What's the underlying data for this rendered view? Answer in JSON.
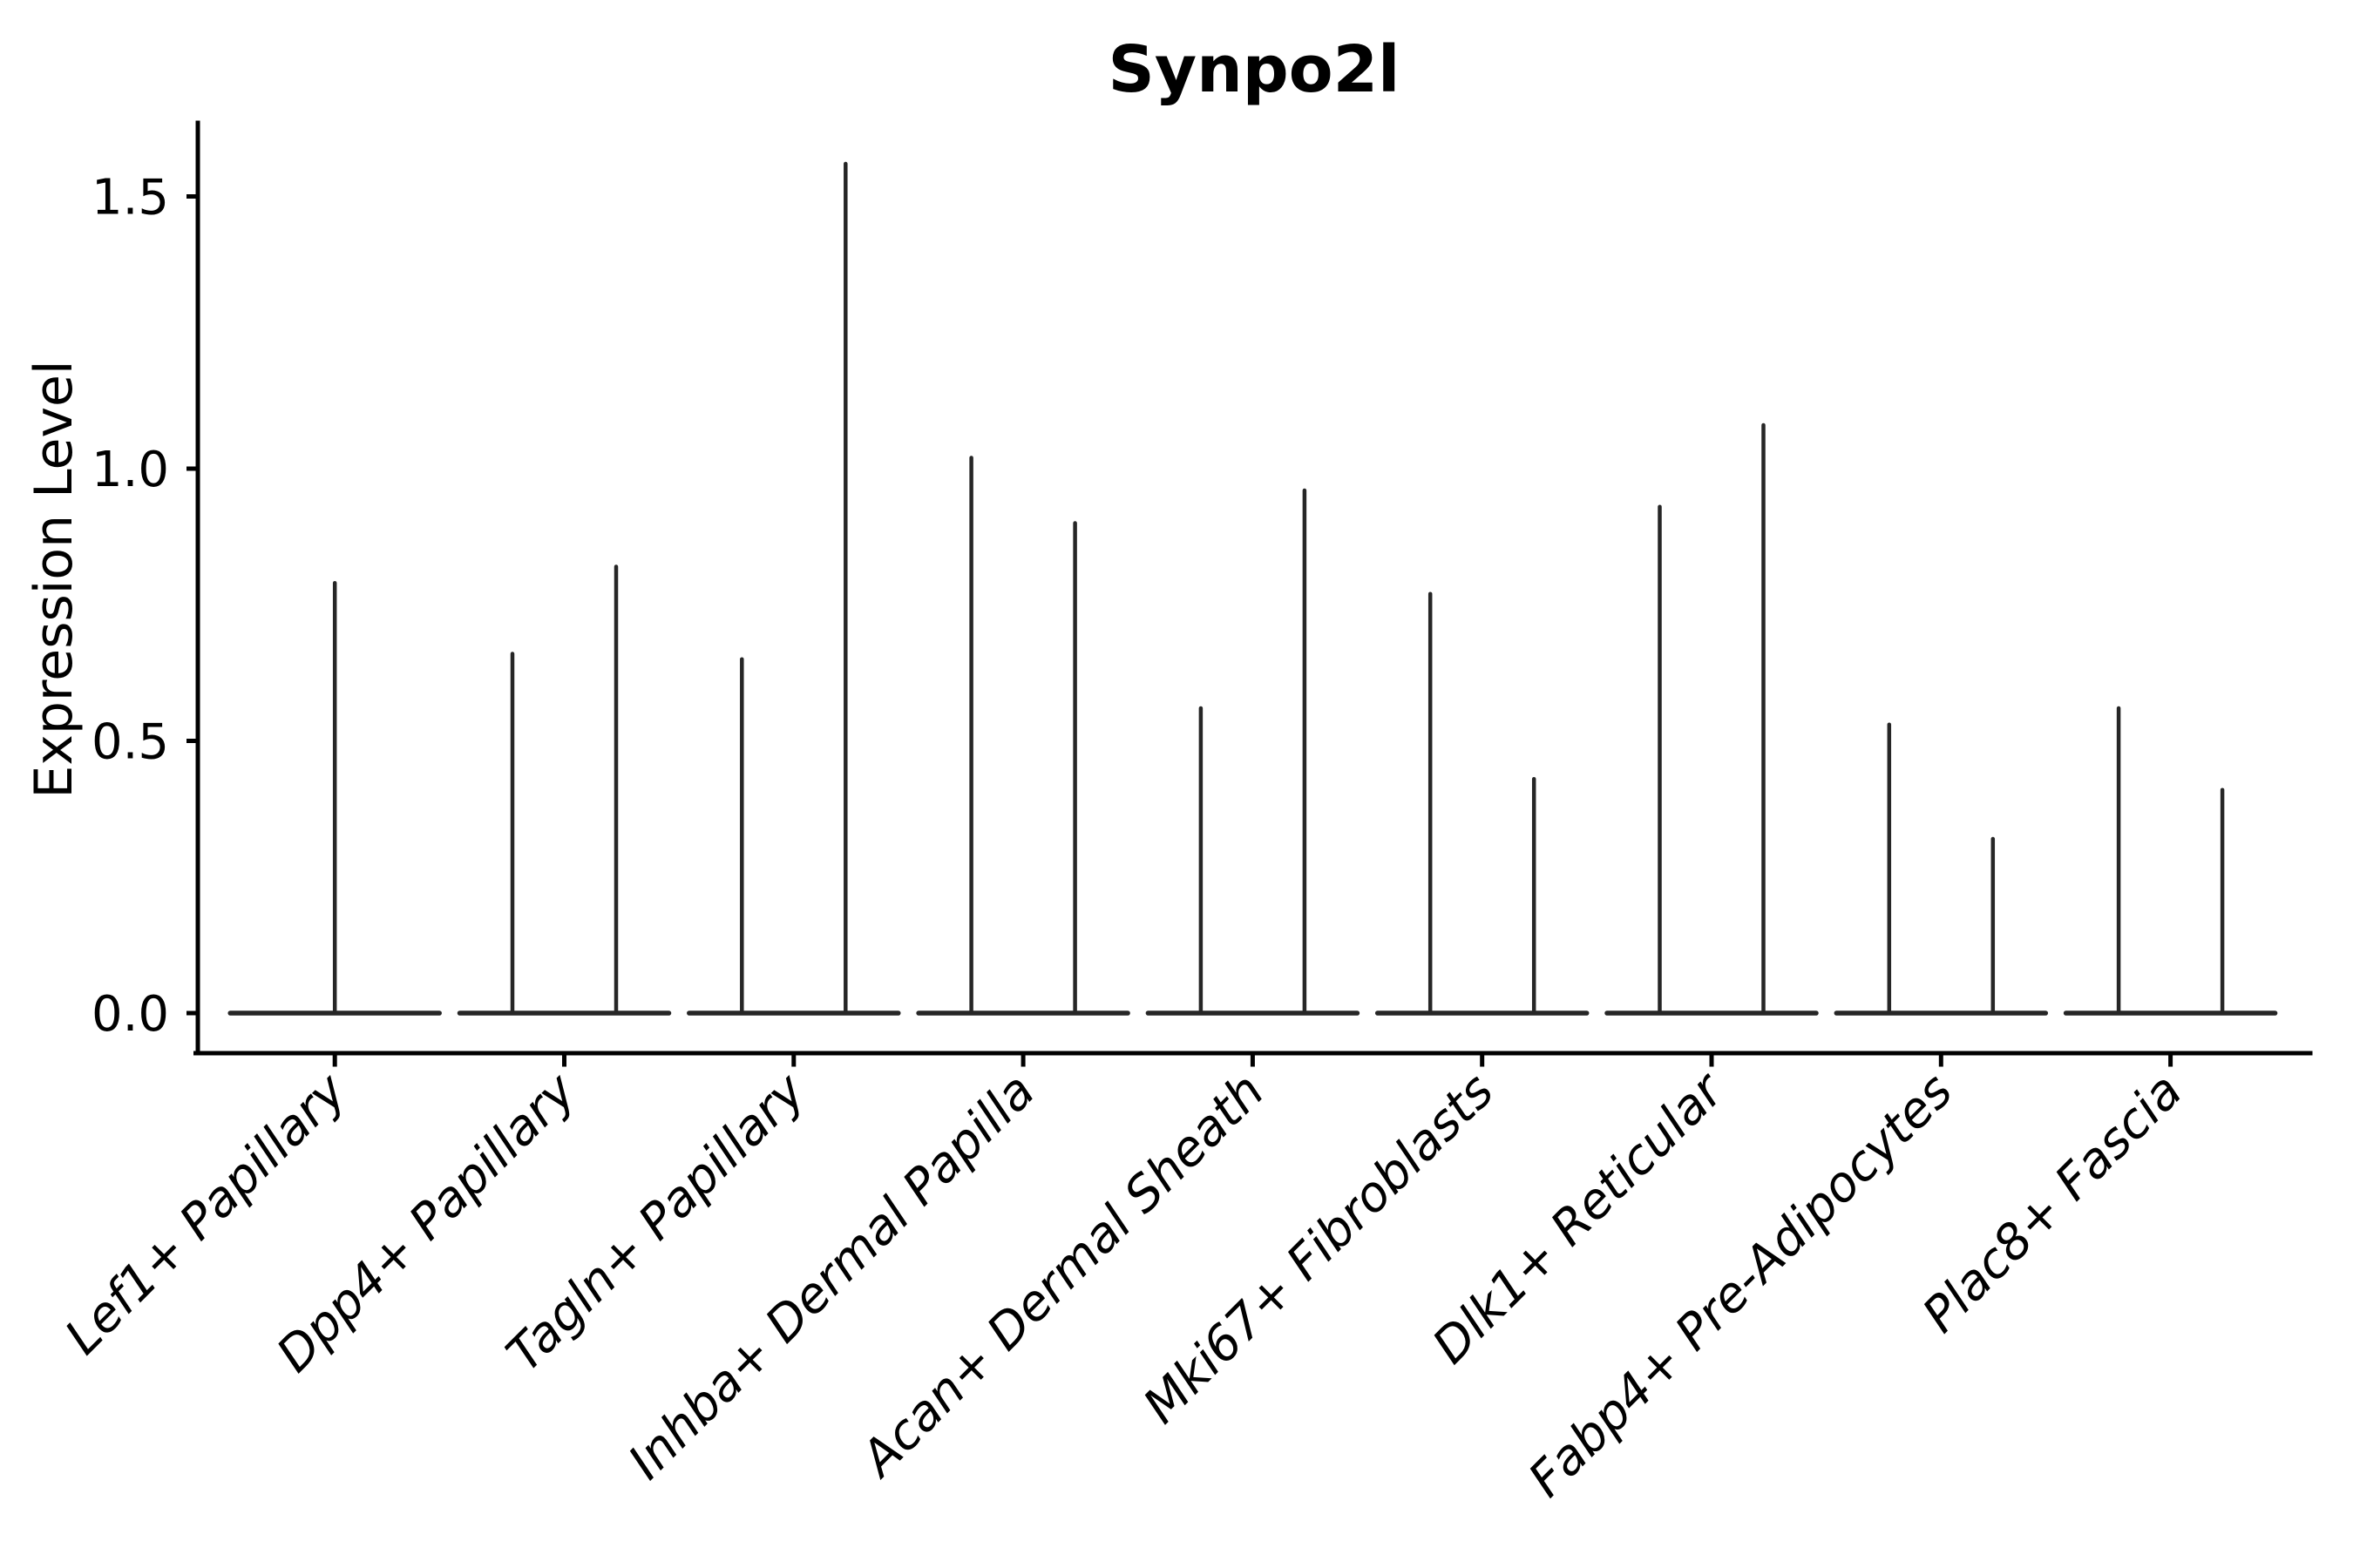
{
  "title": "Synpo2l",
  "y_axis": {
    "label": "Expression Level",
    "ticks": [
      "0.0",
      "0.5",
      "1.0",
      "1.5"
    ]
  },
  "chart_data": {
    "type": "violin",
    "title": "Synpo2l",
    "xlabel": "",
    "ylabel": "Expression Level",
    "ylim": [
      0,
      1.67
    ],
    "yticks": [
      0.0,
      0.5,
      1.0,
      1.5
    ],
    "grid": false,
    "legend": "none",
    "description": "Split violin plot; expression is near zero for most cells so each violin renders as a wide flat base at 0 with a thin vertical spike up to the group's maximum expression. Categories 2-9 contain two dodged violins (left/right); category 1 contains a single full-width violin.",
    "categories": [
      "Lef1+ Papillary",
      "Dpp4+ Papillary",
      "Tagln+ Papillary",
      "Inhba+ Dermal Papilla",
      "Acan+ Dermal Sheath",
      "Mki67+ Fibroblasts",
      "Dlk1+ Reticular",
      "Fabp4+ Pre-Adipocytes",
      "Plac8+ Fascia"
    ],
    "series": [
      {
        "name": "left violin max expression",
        "values": [
          0.79,
          0.66,
          0.65,
          1.02,
          0.56,
          0.77,
          0.93,
          0.53,
          0.56
        ]
      },
      {
        "name": "right violin max expression",
        "values": [
          null,
          0.82,
          1.56,
          0.9,
          0.96,
          0.43,
          1.08,
          0.32,
          0.41
        ]
      }
    ],
    "violins": [
      {
        "category": "Lef1+ Papillary",
        "spikes": [
          {
            "position": "center",
            "max": 0.79
          }
        ]
      },
      {
        "category": "Dpp4+ Papillary",
        "spikes": [
          {
            "position": "left",
            "max": 0.66
          },
          {
            "position": "right",
            "max": 0.82
          }
        ]
      },
      {
        "category": "Tagln+ Papillary",
        "spikes": [
          {
            "position": "left",
            "max": 0.65
          },
          {
            "position": "right",
            "max": 1.56
          }
        ]
      },
      {
        "category": "Inhba+ Dermal Papilla",
        "spikes": [
          {
            "position": "left",
            "max": 1.02
          },
          {
            "position": "right",
            "max": 0.9
          }
        ]
      },
      {
        "category": "Acan+ Dermal Sheath",
        "spikes": [
          {
            "position": "left",
            "max": 0.56
          },
          {
            "position": "right",
            "max": 0.96
          }
        ]
      },
      {
        "category": "Mki67+ Fibroblasts",
        "spikes": [
          {
            "position": "left",
            "max": 0.77
          },
          {
            "position": "right",
            "max": 0.43
          }
        ]
      },
      {
        "category": "Dlk1+ Reticular",
        "spikes": [
          {
            "position": "left",
            "max": 0.93
          },
          {
            "position": "right",
            "max": 1.08
          }
        ]
      },
      {
        "category": "Fabp4+ Pre-Adipocytes",
        "spikes": [
          {
            "position": "left",
            "max": 0.53
          },
          {
            "position": "right",
            "max": 0.32
          }
        ]
      },
      {
        "category": "Plac8+ Fascia",
        "spikes": [
          {
            "position": "left",
            "max": 0.56
          },
          {
            "position": "right",
            "max": 0.41
          }
        ]
      }
    ],
    "colors": {
      "violin_stroke": "#262626",
      "axis": "#000000",
      "background": "#ffffff"
    }
  }
}
